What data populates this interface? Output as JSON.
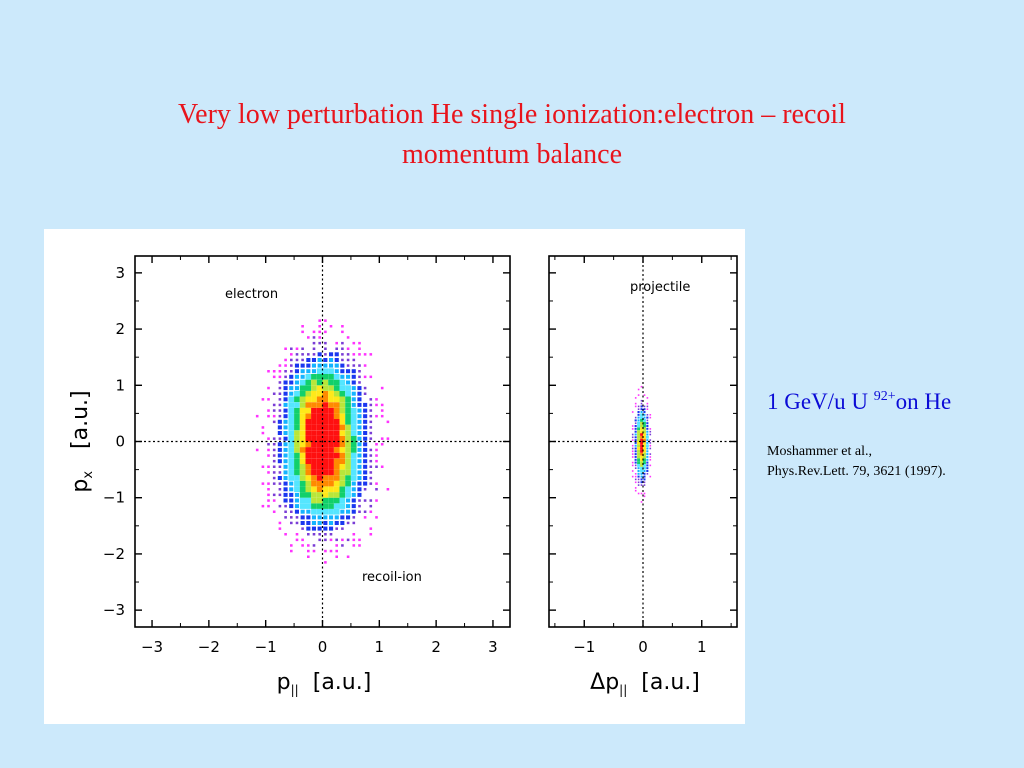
{
  "slide": {
    "title_line1": "Very low perturbation He single ionization:electron – recoil",
    "title_line2": "momentum balance",
    "beam_label_prefix": "1 GeV/u U ",
    "beam_label_charge": "92+",
    "beam_label_suffix": "on He",
    "citation_line1": "Moshammer et al.,",
    "citation_line2": "Phys.Rev.Lett. 79,  3621 (1997)."
  },
  "colors": {
    "background": "#cce9fb",
    "title": "#e8141c",
    "beam_label": "#0b0bd6",
    "density_scale": [
      "#ff33ff",
      "#7a3dd6",
      "#1a37f0",
      "#14b4ff",
      "#55e6ff",
      "#11d06b",
      "#b9e63a",
      "#ffe81a",
      "#ff8a00",
      "#ff1010"
    ]
  },
  "chart_data": [
    {
      "type": "heatmap",
      "title": "",
      "xlabel_main": "p",
      "xlabel_sub": "||",
      "xlabel_unit": "[a.u.]",
      "ylabel_main": "p",
      "ylabel_sub": "x",
      "ylabel_unit": "[a.u.]",
      "xlim": [
        -3.3,
        3.3
      ],
      "ylim": [
        -3.3,
        3.3
      ],
      "xticks": [
        "-3",
        "-2",
        "-1",
        "0",
        "1",
        "2",
        "3"
      ],
      "yticks": [
        "3",
        "2",
        "1",
        "0",
        "-1",
        "-2",
        "-3"
      ],
      "guide_lines": {
        "x": 0,
        "y": 0
      },
      "annotations": [
        "electron",
        "recoil-ion"
      ],
      "bin_size": 0.1,
      "distribution": [
        {
          "cx": 0.0,
          "cy": 0.55,
          "sx": 0.42,
          "sy": 0.62,
          "weight": 1.0
        },
        {
          "cx": 0.02,
          "cy": -0.55,
          "sx": 0.44,
          "sy": 0.62,
          "weight": 1.0
        }
      ]
    },
    {
      "type": "heatmap",
      "title": "",
      "xlabel_main": "Δp",
      "xlabel_sub": "||",
      "xlabel_unit": "[a.u.]",
      "xlim": [
        -1.6,
        1.6
      ],
      "ylim": [
        -3.3,
        3.3
      ],
      "xticks": [
        "-1",
        "0",
        "1"
      ],
      "guide_lines": {
        "x": 0,
        "y": 0
      },
      "annotations": [
        "projectile"
      ],
      "bin_size": 0.05,
      "distribution": [
        {
          "cx": -0.02,
          "cy": -0.05,
          "sx": 0.07,
          "sy": 0.38,
          "weight": 1.0
        }
      ]
    }
  ]
}
